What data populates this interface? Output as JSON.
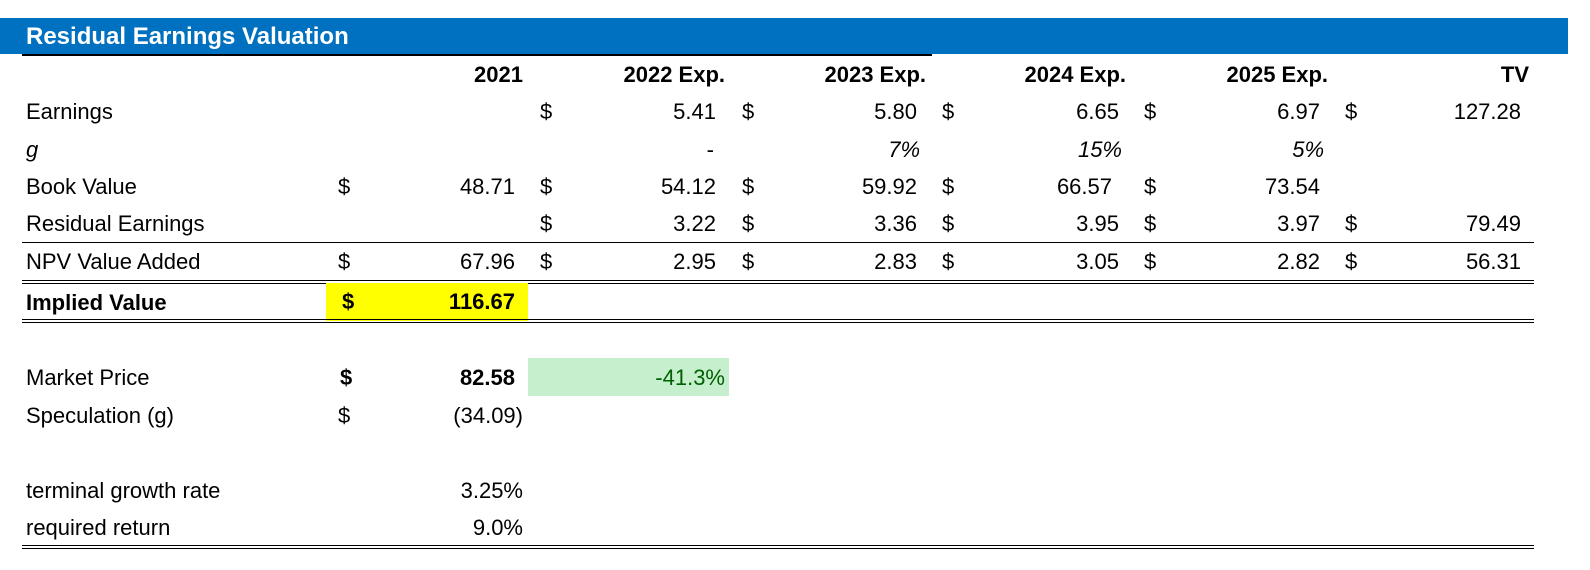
{
  "title": "Residual Earnings Valuation",
  "headers": [
    "2021",
    "2022 Exp.",
    "2023 Exp.",
    "2024 Exp.",
    "2025 Exp.",
    "TV"
  ],
  "currency_symbol": "$",
  "rows": {
    "earnings": {
      "label": "Earnings",
      "values": [
        "",
        "5.41",
        "5.80",
        "6.65",
        "6.97",
        "127.28"
      ]
    },
    "g": {
      "label": "g",
      "values": [
        "",
        "-",
        "7%",
        "15%",
        "5%",
        ""
      ]
    },
    "book_value": {
      "label": "Book Value",
      "values": [
        "48.71",
        "54.12",
        "59.92",
        "66.57",
        "73.54",
        ""
      ]
    },
    "residual": {
      "label": "Residual Earnings",
      "values": [
        "",
        "3.22",
        "3.36",
        "3.95",
        "3.97",
        "79.49"
      ]
    },
    "npv": {
      "label": "NPV Value Added",
      "values": [
        "67.96",
        "2.95",
        "2.83",
        "3.05",
        "2.82",
        "56.31"
      ]
    }
  },
  "implied_value": {
    "label": "Implied Value",
    "value": "116.67"
  },
  "market_price": {
    "label": "Market Price",
    "value": "82.58",
    "pct": "-41.3%"
  },
  "speculation": {
    "label": "Speculation (g)",
    "value": "(34.09)"
  },
  "terminal_growth": {
    "label": "terminal growth rate",
    "value": "3.25%"
  },
  "required_return": {
    "label": "required return",
    "value": "9.0%"
  },
  "colors": {
    "title_bar": "#0070c0",
    "highlight_yellow": "#ffff00",
    "highlight_green": "#c6efce",
    "green_text": "#006100"
  }
}
